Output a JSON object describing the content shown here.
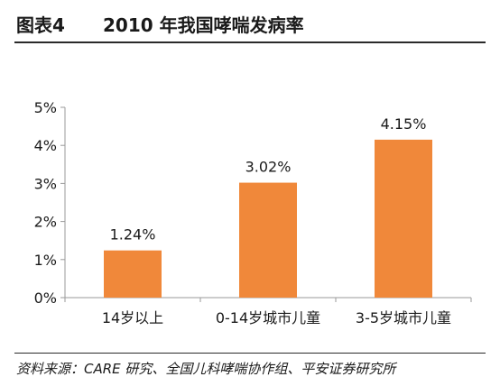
{
  "header": {
    "figure_label": "图表4",
    "title": "2010 年我国哮喘发病率"
  },
  "chart_data": {
    "type": "bar",
    "categories": [
      "14岁以上",
      "0-14岁城市儿童",
      "3-5岁城市儿童"
    ],
    "values": [
      1.24,
      3.02,
      4.15
    ],
    "data_labels": [
      "1.24%",
      "3.02%",
      "4.15%"
    ],
    "y_ticks": [
      "0%",
      "1%",
      "2%",
      "3%",
      "4%",
      "5%"
    ],
    "ylim": [
      0,
      5
    ],
    "grid": false,
    "bar_color": "#f0883a"
  },
  "footer": {
    "source": "资料来源：CARE 研究、全国儿科哮喘协作组、平安证券研究所"
  }
}
